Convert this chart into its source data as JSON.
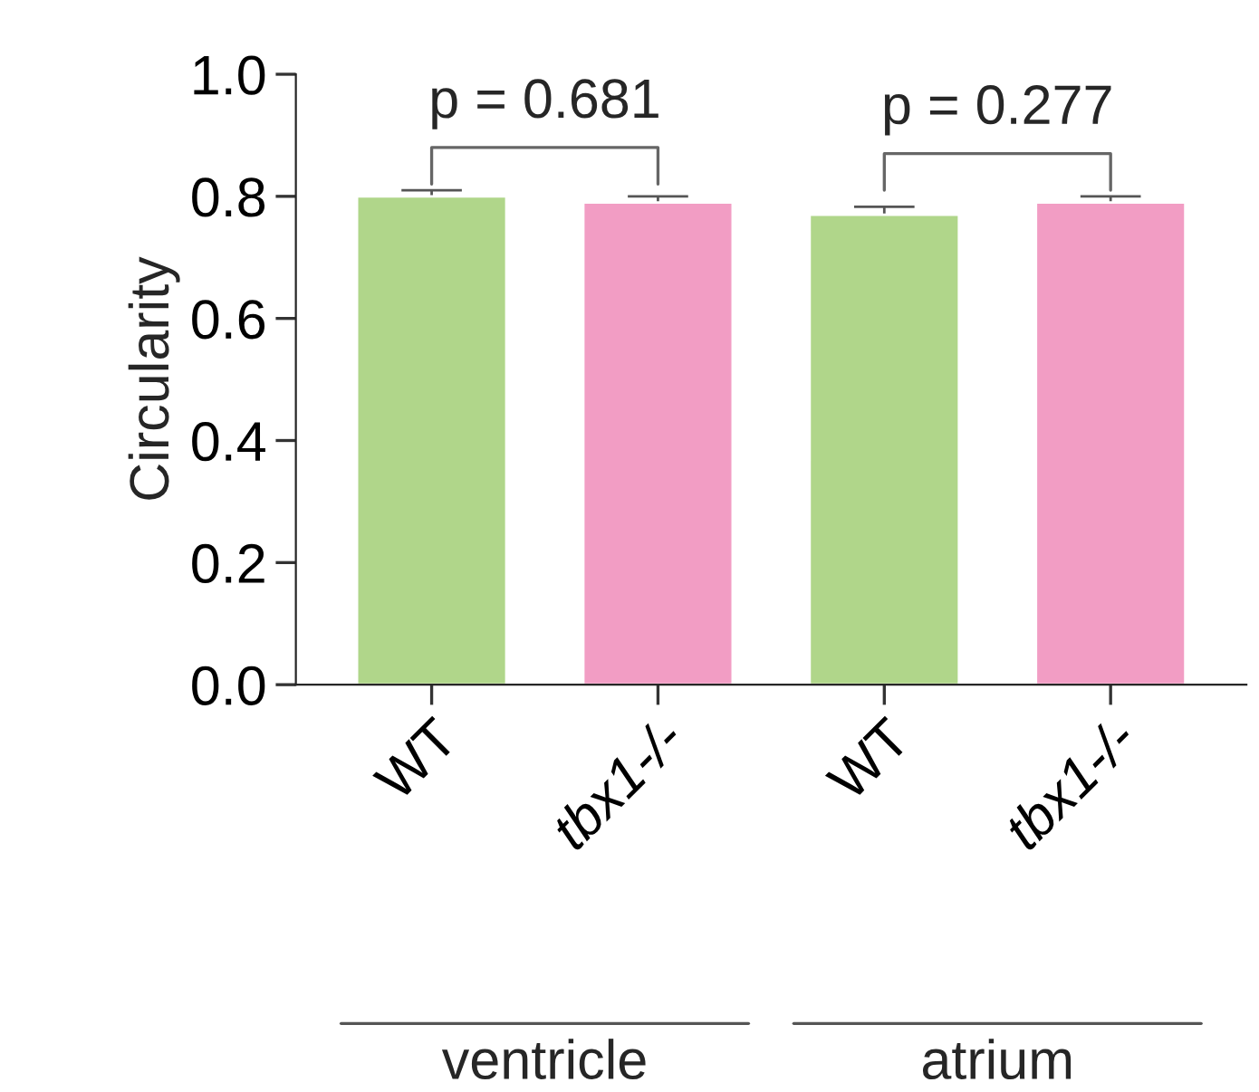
{
  "chart_data": {
    "type": "bar",
    "ylabel": "Circularity",
    "categories": [
      "WT",
      "tbx1-/-",
      "WT",
      "tbx1-/-"
    ],
    "values": [
      0.8,
      0.79,
      0.77,
      0.79
    ],
    "errors": [
      0.01,
      0.01,
      0.013,
      0.01
    ],
    "colors": [
      "#b0d68a",
      "#f29dc4",
      "#b0d68a",
      "#f29dc4"
    ],
    "ylim": [
      0,
      1.0
    ],
    "yticks": [
      {
        "value": 0,
        "label": "0.0"
      },
      0.2,
      0.4,
      0.6,
      0.8,
      {
        "value": 1.0,
        "label": "1.0"
      }
    ],
    "grid": false,
    "legend": false,
    "annotations": [
      "p = 0.681",
      "p = 0.277",
      "ventricle",
      "atrium"
    ]
  }
}
